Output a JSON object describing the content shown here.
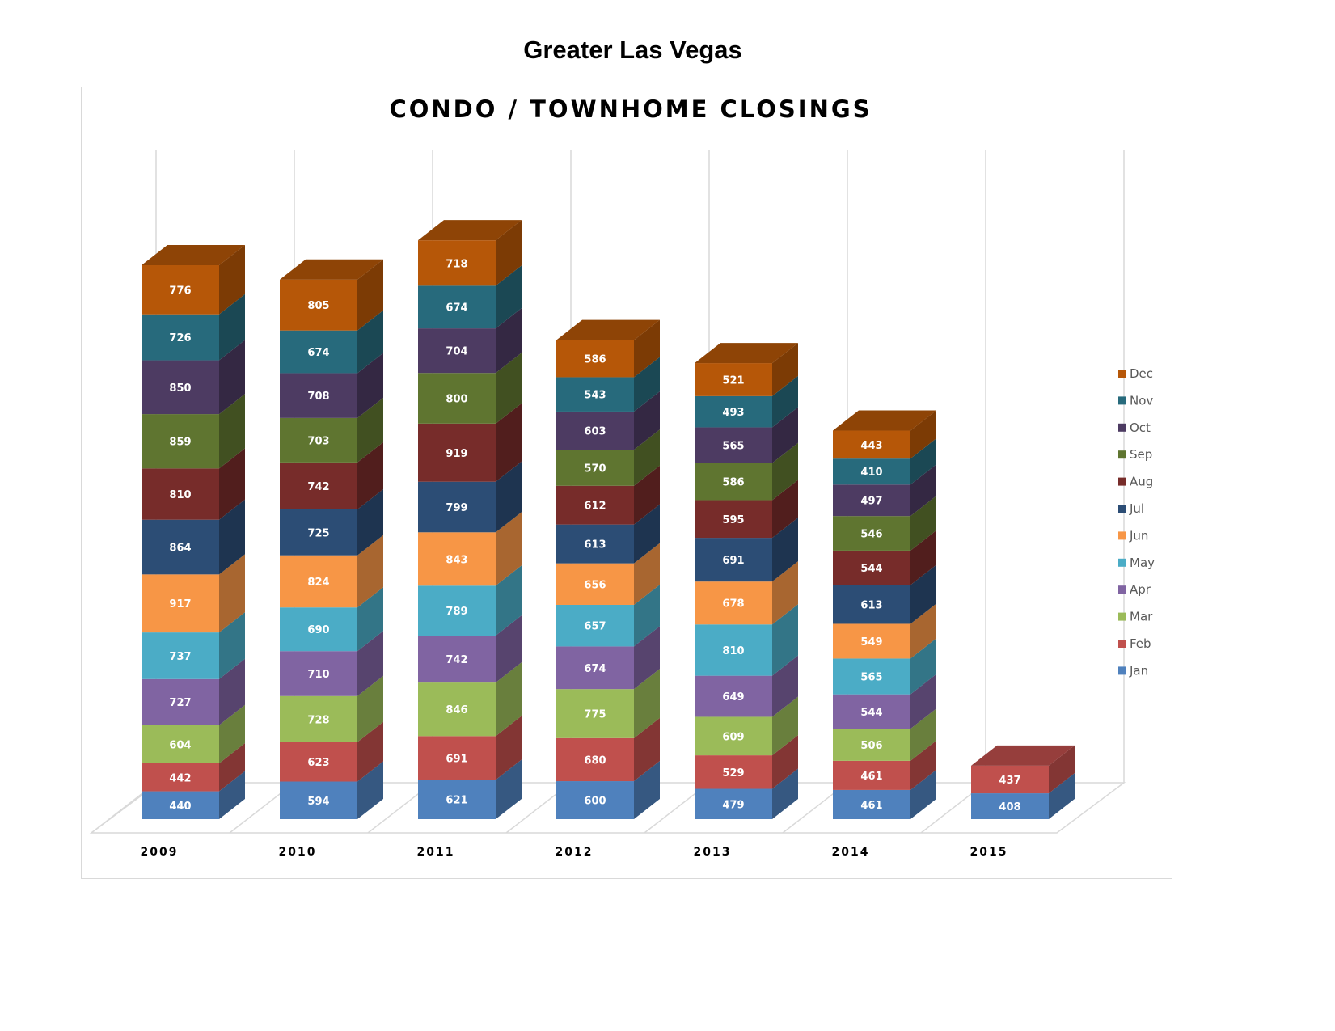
{
  "page": {
    "title": "Greater Las Vegas"
  },
  "chart_data": {
    "type": "bar",
    "stacked": true,
    "three_d": true,
    "title": "CONDO / TOWNHOME CLOSINGS",
    "xlabel": "",
    "ylabel": "",
    "legend_position": "right",
    "grid": true,
    "categories": [
      "2009",
      "2010",
      "2011",
      "2012",
      "2013",
      "2014",
      "2015"
    ],
    "series": [
      {
        "name": "Jan",
        "color": "#4f81bd",
        "values": [
          440,
          594,
          621,
          600,
          479,
          461,
          408
        ]
      },
      {
        "name": "Feb",
        "color": "#c0504d",
        "values": [
          442,
          623,
          691,
          680,
          529,
          461,
          437
        ]
      },
      {
        "name": "Mar",
        "color": "#9bbb59",
        "values": [
          604,
          728,
          846,
          775,
          609,
          506,
          null
        ]
      },
      {
        "name": "Apr",
        "color": "#8064a2",
        "values": [
          727,
          710,
          742,
          674,
          649,
          544,
          null
        ]
      },
      {
        "name": "May",
        "color": "#4bacc6",
        "values": [
          737,
          690,
          789,
          657,
          810,
          565,
          null
        ]
      },
      {
        "name": "Jun",
        "color": "#f79646",
        "values": [
          917,
          824,
          843,
          656,
          678,
          549,
          null
        ]
      },
      {
        "name": "Jul",
        "color": "#2c4d75",
        "values": [
          864,
          725,
          799,
          613,
          691,
          613,
          null
        ]
      },
      {
        "name": "Aug",
        "color": "#772c2a",
        "values": [
          810,
          742,
          919,
          612,
          595,
          544,
          null
        ]
      },
      {
        "name": "Sep",
        "color": "#5f7530",
        "values": [
          859,
          703,
          800,
          570,
          586,
          546,
          null
        ]
      },
      {
        "name": "Oct",
        "color": "#4d3b62",
        "values": [
          850,
          708,
          704,
          603,
          565,
          497,
          null
        ]
      },
      {
        "name": "Nov",
        "color": "#276a7c",
        "values": [
          726,
          674,
          674,
          543,
          493,
          410,
          null
        ]
      },
      {
        "name": "Dec",
        "color": "#b65708",
        "values": [
          776,
          805,
          718,
          586,
          521,
          443,
          null
        ]
      }
    ]
  }
}
